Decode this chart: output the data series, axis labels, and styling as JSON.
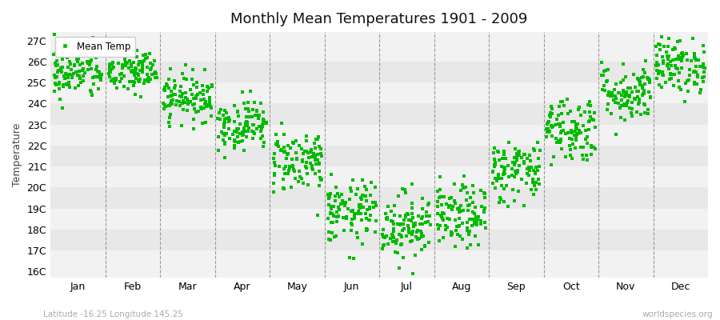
{
  "title": "Monthly Mean Temperatures 1901 - 2009",
  "ylabel": "Temperature",
  "subtitle": "Latitude -16.25 Longitude 145.25",
  "watermark": "worldspecies.org",
  "legend_label": "Mean Temp",
  "dot_color": "#00bb00",
  "background_color": "#ffffff",
  "band_color_light": "#f2f2f2",
  "band_color_dark": "#e8e8e8",
  "yticks": [
    16,
    17,
    18,
    19,
    20,
    21,
    22,
    23,
    24,
    25,
    26,
    27
  ],
  "ytick_labels": [
    "16C",
    "17C",
    "18C",
    "19C",
    "20C",
    "21C",
    "22C",
    "23C",
    "24C",
    "25C",
    "26C",
    "27C"
  ],
  "ylim": [
    15.7,
    27.4
  ],
  "months": [
    "Jan",
    "Feb",
    "Mar",
    "Apr",
    "May",
    "Jun",
    "Jul",
    "Aug",
    "Sep",
    "Oct",
    "Nov",
    "Dec"
  ],
  "month_means": [
    25.5,
    25.5,
    24.3,
    23.0,
    21.3,
    18.8,
    18.2,
    18.6,
    20.8,
    22.8,
    24.5,
    25.8
  ],
  "month_stds": [
    0.65,
    0.55,
    0.55,
    0.6,
    0.75,
    0.75,
    0.8,
    0.75,
    0.75,
    0.8,
    0.7,
    0.65
  ],
  "n_years": 109,
  "seed": 42,
  "marker_size": 3.5,
  "dpi": 100,
  "figsize": [
    9.0,
    4.0
  ]
}
